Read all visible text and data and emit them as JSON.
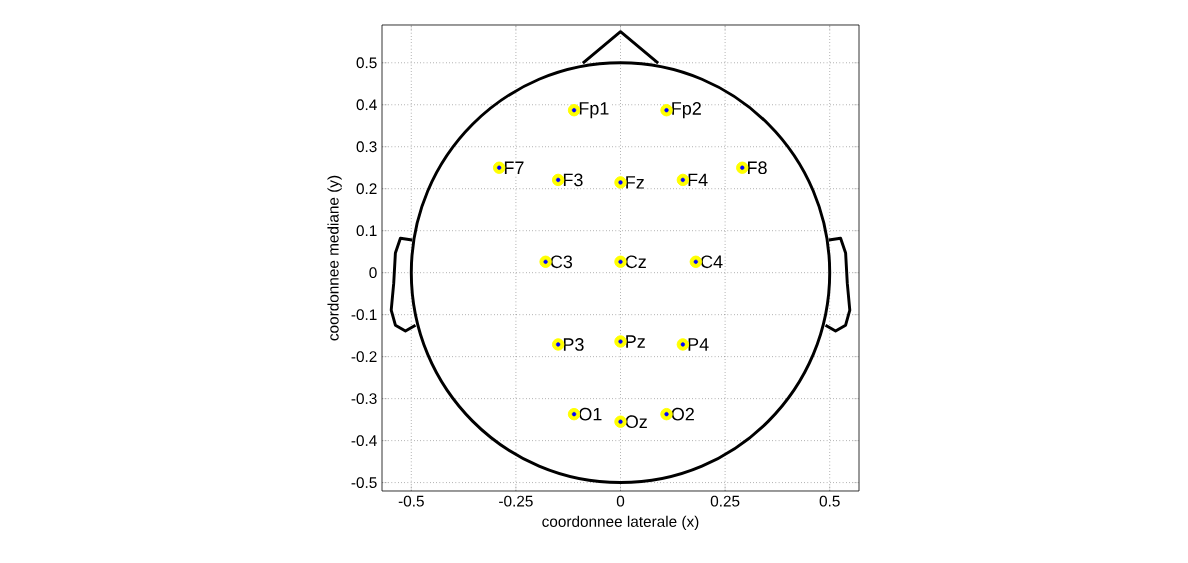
{
  "chart_data": {
    "type": "scatter",
    "xlabel": "coordonnee laterale (x)",
    "ylabel": "coordonnee mediane (y)",
    "xlim": [
      -0.57,
      0.57
    ],
    "ylim": [
      -0.52,
      0.59
    ],
    "xticks": [
      -0.5,
      -0.25,
      0,
      0.25,
      0.5
    ],
    "yticks": [
      -0.5,
      -0.4,
      -0.3,
      -0.2,
      -0.1,
      0,
      0.1,
      0.2,
      0.3,
      0.4,
      0.5
    ],
    "grid": true,
    "marker": "circle",
    "series": [
      {
        "color": "#ffff00",
        "x": [
          -0.111,
          0.11,
          -0.29,
          -0.149,
          0,
          0.149,
          0.291,
          -0.179,
          0,
          0.18,
          -0.149,
          0,
          0.149,
          -0.111,
          0,
          0.11
        ],
        "values": [
          0.387,
          0.387,
          0.25,
          0.221,
          0.215,
          0.221,
          0.25,
          0.026,
          0.026,
          0.026,
          -0.171,
          -0.164,
          -0.171,
          -0.337,
          -0.355,
          -0.337
        ]
      },
      {
        "color": "#0000ff",
        "x": [
          -0.111,
          0.11,
          -0.29,
          -0.149,
          0,
          0.149,
          0.291,
          -0.179,
          0,
          0.18,
          -0.149,
          0,
          0.149,
          -0.111,
          0,
          0.11
        ],
        "values": [
          0.387,
          0.387,
          0.25,
          0.221,
          0.215,
          0.221,
          0.25,
          0.026,
          0.026,
          0.026,
          -0.171,
          -0.164,
          -0.171,
          -0.337,
          -0.355,
          -0.337
        ]
      }
    ],
    "annotations": [
      {
        "text": "Fp1",
        "x": -0.111,
        "y": 0.387
      },
      {
        "text": "Fp2",
        "x": 0.11,
        "y": 0.387
      },
      {
        "text": "F7",
        "x": -0.29,
        "y": 0.25
      },
      {
        "text": "F3",
        "x": -0.149,
        "y": 0.221
      },
      {
        "text": "Fz",
        "x": 0,
        "y": 0.215
      },
      {
        "text": "F4",
        "x": 0.149,
        "y": 0.221
      },
      {
        "text": "F8",
        "x": 0.291,
        "y": 0.25
      },
      {
        "text": "C3",
        "x": -0.179,
        "y": 0.026
      },
      {
        "text": "Cz",
        "x": 0,
        "y": 0.026
      },
      {
        "text": "C4",
        "x": 0.18,
        "y": 0.026
      },
      {
        "text": "P3",
        "x": -0.149,
        "y": -0.171
      },
      {
        "text": "Pz",
        "x": 0,
        "y": -0.164
      },
      {
        "text": "P4",
        "x": 0.149,
        "y": -0.171
      },
      {
        "text": "O1",
        "x": -0.111,
        "y": -0.337
      },
      {
        "text": "Oz",
        "x": 0,
        "y": -0.355
      },
      {
        "text": "O2",
        "x": 0.11,
        "y": -0.337
      }
    ]
  }
}
